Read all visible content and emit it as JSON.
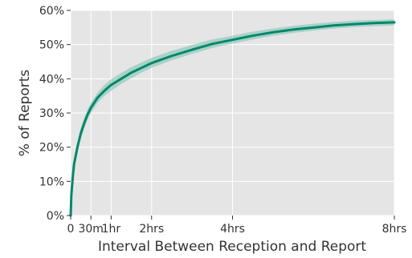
{
  "chart_data": {
    "type": "line",
    "title": "",
    "xlabel": "Interval Between Reception and Report",
    "ylabel": "% of Reports",
    "xlim": [
      0,
      480
    ],
    "ylim": [
      0,
      60
    ],
    "x_unit": "minutes",
    "grid": true,
    "legend": "none",
    "background_color": "#e5e5e5",
    "grid_color": "#ffffff",
    "line_color": "#00876a",
    "band_color": "#80c3b3",
    "x_ticks": [
      {
        "value": 0,
        "label": "0"
      },
      {
        "value": 30,
        "label": "30m"
      },
      {
        "value": 60,
        "label": "1hr"
      },
      {
        "value": 120,
        "label": "2hrs"
      },
      {
        "value": 240,
        "label": "4hrs"
      },
      {
        "value": 480,
        "label": "8hrs"
      }
    ],
    "y_ticks": [
      {
        "value": 0,
        "label": "0%"
      },
      {
        "value": 10,
        "label": "10%"
      },
      {
        "value": 20,
        "label": "20%"
      },
      {
        "value": 30,
        "label": "30%"
      },
      {
        "value": 40,
        "label": "40%"
      },
      {
        "value": 50,
        "label": "50%"
      },
      {
        "value": 60,
        "label": "60%"
      }
    ],
    "series": [
      {
        "x": [
          0,
          1,
          3,
          5,
          10,
          15,
          20,
          25,
          30,
          40,
          50,
          60,
          75,
          90,
          105,
          120,
          150,
          180,
          210,
          240,
          270,
          300,
          330,
          360,
          390,
          420,
          450,
          480
        ],
        "y": [
          0,
          6,
          11,
          15,
          20,
          24,
          27,
          29.5,
          31.5,
          34.5,
          36.5,
          38.2,
          40,
          41.8,
          43.2,
          44.6,
          46.7,
          48.5,
          50.2,
          51.4,
          52.6,
          53.6,
          54.4,
          55.0,
          55.6,
          56.0,
          56.3,
          56.5
        ],
        "lower": [
          0,
          5,
          10,
          13.5,
          18.5,
          22.5,
          25.5,
          28,
          30,
          33,
          35,
          36.5,
          38.5,
          40.2,
          41.8,
          43.2,
          45.4,
          47.3,
          49.0,
          50.3,
          51.5,
          52.6,
          53.4,
          54.1,
          54.7,
          55.1,
          55.4,
          55.6
        ],
        "upper": [
          0,
          7,
          12,
          16.5,
          21.5,
          25.5,
          28.5,
          31,
          33,
          36,
          38.2,
          39.9,
          41.7,
          43.4,
          44.8,
          46.1,
          48.2,
          49.9,
          51.5,
          52.6,
          53.8,
          54.7,
          55.5,
          56.1,
          56.6,
          57.0,
          57.2,
          57.4
        ]
      }
    ]
  }
}
